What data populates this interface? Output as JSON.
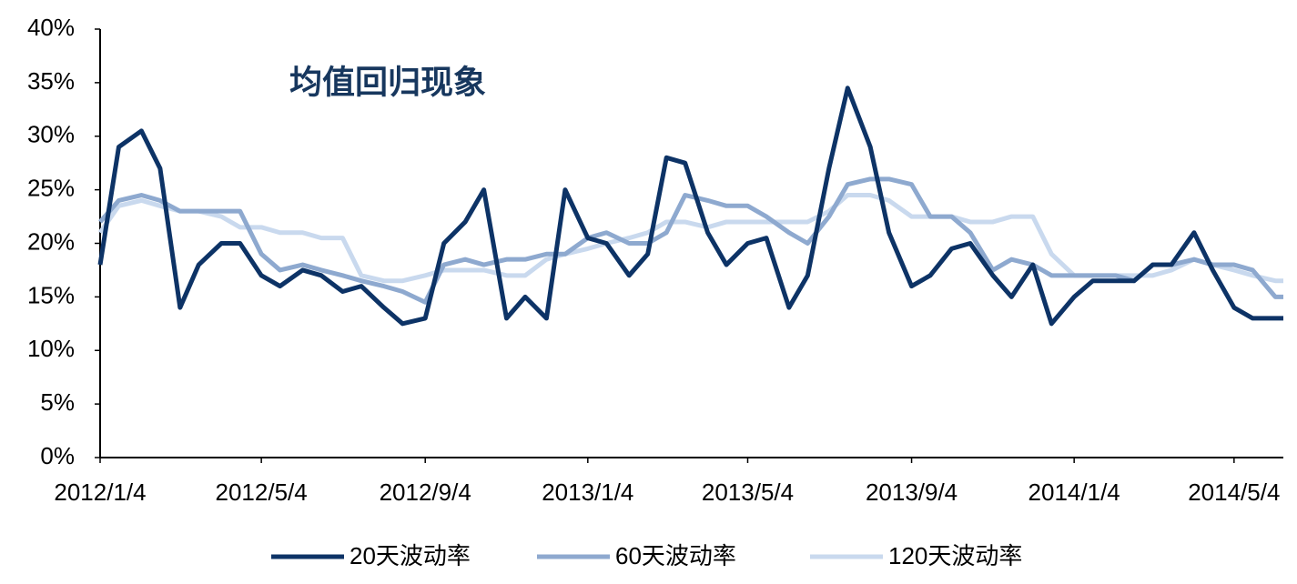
{
  "chart_data": {
    "type": "line",
    "annotation": "均值回归现象",
    "x": [
      "2012/1/4",
      "2012/1/18",
      "2012/2/4",
      "2012/2/18",
      "2012/3/4",
      "2012/3/18",
      "2012/4/4",
      "2012/4/18",
      "2012/5/4",
      "2012/5/18",
      "2012/6/4",
      "2012/6/18",
      "2012/7/4",
      "2012/7/18",
      "2012/8/4",
      "2012/8/18",
      "2012/9/4",
      "2012/9/18",
      "2012/10/4",
      "2012/10/18",
      "2012/11/4",
      "2012/11/18",
      "2012/12/4",
      "2012/12/18",
      "2013/1/4",
      "2013/1/18",
      "2013/2/4",
      "2013/2/18",
      "2013/3/4",
      "2013/3/18",
      "2013/4/4",
      "2013/4/18",
      "2013/5/4",
      "2013/5/18",
      "2013/6/4",
      "2013/6/18",
      "2013/7/4",
      "2013/7/18",
      "2013/8/4",
      "2013/8/18",
      "2013/9/4",
      "2013/9/18",
      "2013/10/4",
      "2013/10/18",
      "2013/11/4",
      "2013/11/18",
      "2013/12/4",
      "2013/12/18",
      "2014/1/4",
      "2014/1/18",
      "2014/2/4",
      "2014/2/18",
      "2014/3/4",
      "2014/3/18",
      "2014/4/4",
      "2014/4/18",
      "2014/5/4",
      "2014/5/18",
      "2014/6/4",
      "2014/6/10"
    ],
    "series": [
      {
        "name": "20天波动率",
        "color": "#0d3366",
        "values": [
          18,
          29,
          30.5,
          27,
          14,
          18,
          20,
          20,
          17,
          16,
          17.5,
          17,
          15.5,
          16,
          14,
          12.5,
          13,
          20,
          22,
          25,
          13,
          15,
          13,
          25,
          20.5,
          20,
          17,
          19,
          28,
          27.5,
          21,
          18,
          20,
          20.5,
          14,
          17,
          27,
          34.5,
          29,
          21,
          16,
          17,
          19.5,
          20,
          17,
          15,
          18,
          12.5,
          15,
          16.5,
          16.5,
          16.5,
          18,
          18,
          21,
          17.5,
          14,
          13,
          13,
          13
        ]
      },
      {
        "name": "60天波动率",
        "color": "#8ea9cf",
        "values": [
          22,
          24,
          24.5,
          24,
          23,
          23,
          23,
          23,
          19,
          17.5,
          18,
          17.5,
          17,
          16.5,
          16,
          15.5,
          14.5,
          18,
          18.5,
          18,
          18.5,
          18.5,
          19,
          19,
          20.5,
          21,
          20,
          20,
          21,
          24.5,
          24,
          23.5,
          23.5,
          22.5,
          21,
          20,
          22.5,
          25.5,
          26,
          26,
          25.5,
          22.5,
          22.5,
          21,
          17.5,
          18.5,
          18,
          17,
          17,
          17,
          17,
          16.5,
          18,
          18,
          18.5,
          18,
          18,
          17.5,
          15,
          15
        ]
      },
      {
        "name": "120天波动率",
        "color": "#c9d9ee",
        "values": [
          21,
          23.5,
          24,
          23.5,
          23,
          23,
          22.5,
          21.5,
          21.5,
          21,
          21,
          20.5,
          20.5,
          17,
          16.5,
          16.5,
          17,
          17.5,
          17.5,
          17.5,
          17,
          17,
          18.5,
          19,
          19.5,
          20,
          20.5,
          21,
          22,
          22,
          21.5,
          22,
          22,
          22,
          22,
          22,
          23,
          24.5,
          24.5,
          24,
          22.5,
          22.5,
          22.5,
          22,
          22,
          22.5,
          22.5,
          19,
          17,
          17,
          17,
          17,
          17,
          17.5,
          18.5,
          18,
          17.5,
          17,
          16.5,
          16.5
        ]
      }
    ],
    "xlim": [
      "2012/1/4",
      "2014/6/10"
    ],
    "xticks": [
      "2012/1/4",
      "2012/5/4",
      "2012/9/4",
      "2013/1/4",
      "2013/5/4",
      "2013/9/4",
      "2014/1/4",
      "2014/5/4"
    ],
    "ylim": [
      0,
      40
    ],
    "yticks": [
      {
        "value": 0,
        "label": "0%"
      },
      {
        "value": 5,
        "label": "5%"
      },
      {
        "value": 10,
        "label": "10%"
      },
      {
        "value": 15,
        "label": "15%"
      },
      {
        "value": 20,
        "label": "20%"
      },
      {
        "value": 25,
        "label": "25%"
      },
      {
        "value": 30,
        "label": "30%"
      },
      {
        "value": 35,
        "label": "35%"
      },
      {
        "value": 40,
        "label": "40%"
      }
    ],
    "legend": "bottom"
  }
}
